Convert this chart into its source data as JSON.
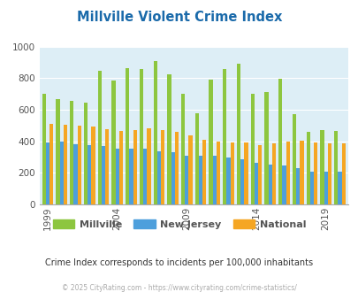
{
  "title": "Millville Violent Crime Index",
  "title_color": "#1a6aaa",
  "years": [
    1999,
    2000,
    2001,
    2002,
    2003,
    2004,
    2005,
    2006,
    2007,
    2008,
    2009,
    2010,
    2011,
    2012,
    2013,
    2014,
    2015,
    2016,
    2017,
    2018,
    2019,
    2020
  ],
  "millville": [
    700,
    670,
    655,
    645,
    845,
    785,
    865,
    860,
    910,
    825,
    700,
    580,
    790,
    860,
    890,
    700,
    710,
    795,
    575,
    460,
    470,
    465
  ],
  "new_jersey": [
    395,
    400,
    380,
    375,
    370,
    355,
    355,
    355,
    335,
    330,
    310,
    310,
    310,
    295,
    285,
    265,
    255,
    245,
    230,
    210,
    210,
    210
  ],
  "national": [
    510,
    505,
    500,
    495,
    475,
    465,
    470,
    480,
    470,
    460,
    435,
    410,
    400,
    395,
    395,
    375,
    385,
    400,
    405,
    395,
    390,
    385
  ],
  "millville_color": "#8dc63f",
  "nj_color": "#4d9fdc",
  "national_color": "#f5a623",
  "bg_color": "#ddeef6",
  "ylim": [
    0,
    1000
  ],
  "yticks": [
    0,
    200,
    400,
    600,
    800,
    1000
  ],
  "xtick_years": [
    1999,
    2004,
    2009,
    2014,
    2019
  ],
  "subtitle": "Crime Index corresponds to incidents per 100,000 inhabitants",
  "footer": "© 2025 CityRating.com - https://www.cityrating.com/crime-statistics/",
  "subtitle_color": "#333333",
  "footer_color": "#aaaaaa"
}
